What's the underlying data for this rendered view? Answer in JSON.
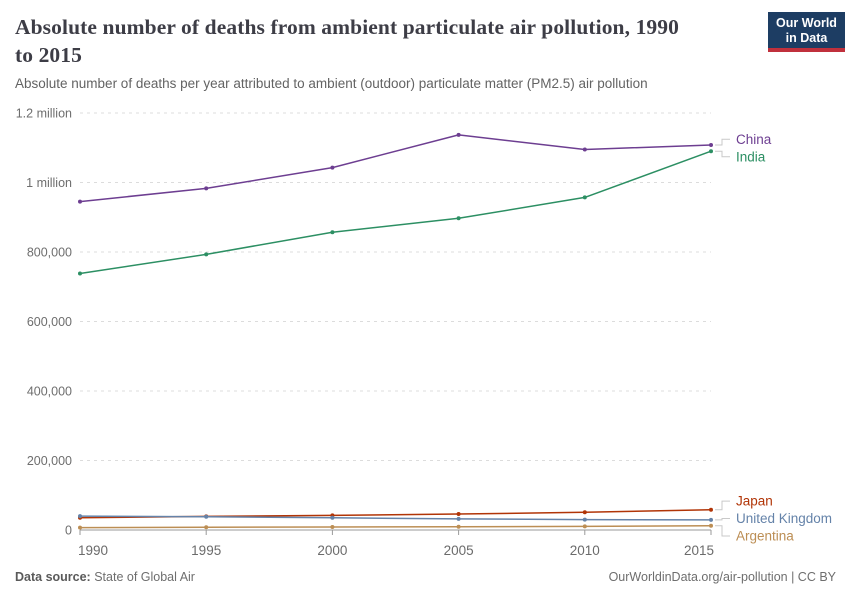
{
  "header": {
    "title": "Absolute number of deaths from ambient particulate air pollution, 1990 to 2015",
    "title_lines": [
      "Absolute number of deaths from ambient particulate air pollution, 1990",
      "to 2015"
    ],
    "subtitle": "Absolute number of deaths per year attributed to ambient (outdoor) particulate matter (PM2.5) air pollution",
    "logo": {
      "line1": "Our World",
      "line2": "in Data",
      "bg_color": "#1d3d63",
      "bar_color": "#c0303c"
    }
  },
  "footer": {
    "source_label": "Data source:",
    "source_value": "State of Global Air",
    "credit": "OurWorldinData.org/air-pollution | CC BY"
  },
  "chart_data": {
    "type": "line",
    "title": "Absolute number of deaths from ambient particulate air pollution, 1990 to 2015",
    "xlabel": "",
    "ylabel": "",
    "x": [
      1990,
      1995,
      2000,
      2005,
      2010,
      2015
    ],
    "x_tick_labels": [
      "1990",
      "1995",
      "2000",
      "2005",
      "2010",
      "2015"
    ],
    "xlim": [
      1990,
      2015
    ],
    "y_ticks": [
      0,
      200000,
      400000,
      600000,
      800000,
      1000000,
      1200000
    ],
    "y_tick_labels": [
      "0",
      "200,000",
      "400,000",
      "600,000",
      "800,000",
      "1 million",
      "1.2 million"
    ],
    "ylim": [
      0,
      1200000
    ],
    "grid": "horizontal-dashed",
    "legend_position": "labels-at-right-line-ends",
    "axis_color": "#9a9a9a",
    "grid_color": "#dcdcdc",
    "tick_label_color": "#6e6e6e",
    "series": [
      {
        "name": "China",
        "color": "#6d3e91",
        "values": [
          945000,
          983000,
          1043000,
          1137000,
          1095000,
          1108000
        ]
      },
      {
        "name": "India",
        "color": "#2c8f63",
        "values": [
          738000,
          793000,
          857000,
          897000,
          957000,
          1090000
        ]
      },
      {
        "name": "Japan",
        "color": "#b13507",
        "values": [
          35000,
          39000,
          42000,
          46000,
          51000,
          58000
        ]
      },
      {
        "name": "United Kingdom",
        "color": "#6583a9",
        "values": [
          40000,
          38000,
          35000,
          32000,
          30000,
          29000
        ]
      },
      {
        "name": "Argentina",
        "color": "#bc8e54",
        "values": [
          7000,
          8000,
          8500,
          9500,
          10500,
          12000
        ]
      }
    ]
  }
}
